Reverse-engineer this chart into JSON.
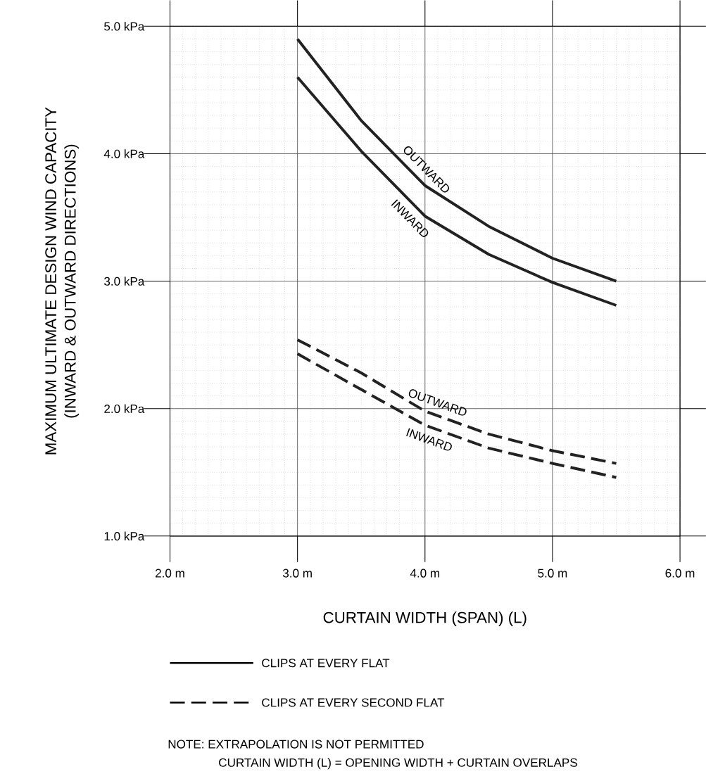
{
  "chart_data": {
    "type": "line",
    "xlabel": "CURTAIN WIDTH (SPAN) (L)",
    "ylabel": "MAXIMUM ULTIMATE DESIGN WIND CAPACITY\n(INWARD & OUTWARD DIRECTIONS)",
    "x": [
      3.0,
      3.5,
      4.0,
      4.5,
      5.0,
      5.5
    ],
    "series": [
      {
        "name": "OUTWARD",
        "color": "#222222",
        "line_style": "solid",
        "values": [
          4.9,
          4.26,
          3.75,
          3.43,
          3.18,
          3.0
        ]
      },
      {
        "name": "INWARD",
        "color": "#222222",
        "line_style": "solid",
        "values": [
          4.6,
          4.02,
          3.51,
          3.21,
          2.99,
          2.81
        ]
      },
      {
        "name": "OUTWARD",
        "color": "#222222",
        "line_style": "dashed",
        "values": [
          2.54,
          2.28,
          1.98,
          1.8,
          1.67,
          1.57
        ]
      },
      {
        "name": "INWARD",
        "color": "#222222",
        "line_style": "dashed",
        "values": [
          2.43,
          2.15,
          1.87,
          1.69,
          1.57,
          1.46
        ]
      }
    ],
    "xlim": [
      2,
      6
    ],
    "ylim": [
      1,
      5
    ],
    "xticks": [
      {
        "value": 2,
        "label": "2.0 m"
      },
      {
        "value": 3,
        "label": "3.0 m"
      },
      {
        "value": 4,
        "label": "4.0 m"
      },
      {
        "value": 5,
        "label": "5.0 m"
      },
      {
        "value": 6,
        "label": "6.0 m"
      }
    ],
    "yticks": [
      {
        "value": 1,
        "label": "1.0 kPa"
      },
      {
        "value": 2,
        "label": "2.0 kPa"
      },
      {
        "value": 3,
        "label": "3.0 kPa"
      },
      {
        "value": 4,
        "label": "4.0 kPa"
      },
      {
        "value": 5,
        "label": "5.0 kPa"
      }
    ],
    "grid": true,
    "legend": "bottom",
    "marker": "none",
    "annotations": [
      "CLIPS AT EVERY FLAT",
      "CLIPS AT EVERY SECOND FLAT",
      "NOTE: EXTRAPOLATION IS NOT PERMITTED",
      "CURTAIN WIDTH (L) = OPENING WIDTH + CURTAIN OVERLAPS"
    ]
  }
}
